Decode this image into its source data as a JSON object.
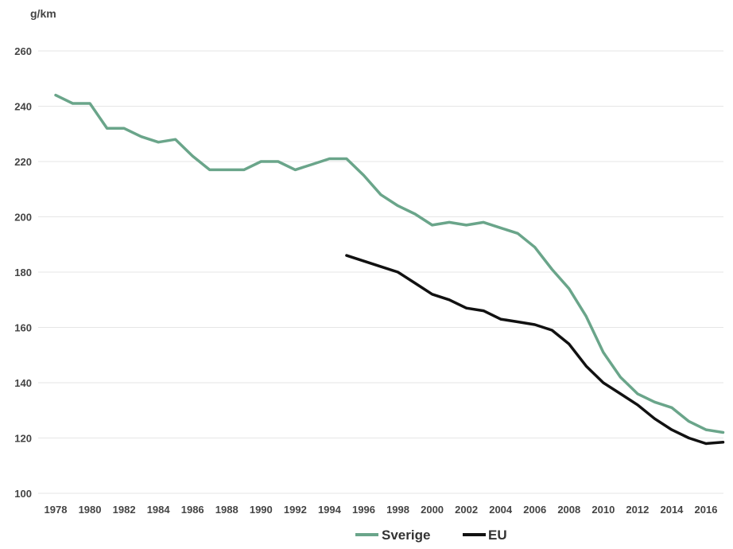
{
  "chart_data": {
    "type": "line",
    "ylabel": "g/km",
    "ylim": [
      100,
      260
    ],
    "yticks": [
      100,
      120,
      140,
      160,
      180,
      200,
      220,
      240,
      260
    ],
    "xlim": [
      1978,
      2017
    ],
    "xticks": [
      1978,
      1980,
      1982,
      1984,
      1986,
      1988,
      1990,
      1992,
      1994,
      1996,
      1998,
      2000,
      2002,
      2004,
      2006,
      2008,
      2010,
      2012,
      2014,
      2016
    ],
    "grid": true,
    "legend_position": "bottom",
    "series": [
      {
        "name": "Sverige",
        "color": "#6aa58a",
        "x": [
          1978,
          1979,
          1980,
          1981,
          1982,
          1983,
          1984,
          1985,
          1986,
          1987,
          1988,
          1989,
          1990,
          1991,
          1992,
          1993,
          1994,
          1995,
          1996,
          1997,
          1998,
          1999,
          2000,
          2001,
          2002,
          2003,
          2004,
          2005,
          2006,
          2007,
          2008,
          2009,
          2010,
          2011,
          2012,
          2013,
          2014,
          2015,
          2016,
          2017
        ],
        "values": [
          244,
          241,
          241,
          232,
          232,
          229,
          227,
          228,
          222,
          217,
          217,
          217,
          220,
          220,
          217,
          219,
          221,
          221,
          215,
          208,
          204,
          201,
          197,
          198,
          197,
          198,
          196,
          194,
          189,
          181,
          174,
          164,
          151,
          142,
          136,
          133,
          131,
          126,
          123,
          122
        ]
      },
      {
        "name": "EU",
        "color": "#111111",
        "x": [
          1995,
          1996,
          1997,
          1998,
          1999,
          2000,
          2001,
          2002,
          2003,
          2004,
          2005,
          2006,
          2007,
          2008,
          2009,
          2010,
          2011,
          2012,
          2013,
          2014,
          2015,
          2016,
          2017
        ],
        "values": [
          186,
          184,
          182,
          180,
          176,
          172,
          170,
          167,
          166,
          163,
          162,
          161,
          159,
          154,
          146,
          140,
          136,
          132,
          127,
          123,
          120,
          118,
          118.5
        ]
      }
    ]
  }
}
